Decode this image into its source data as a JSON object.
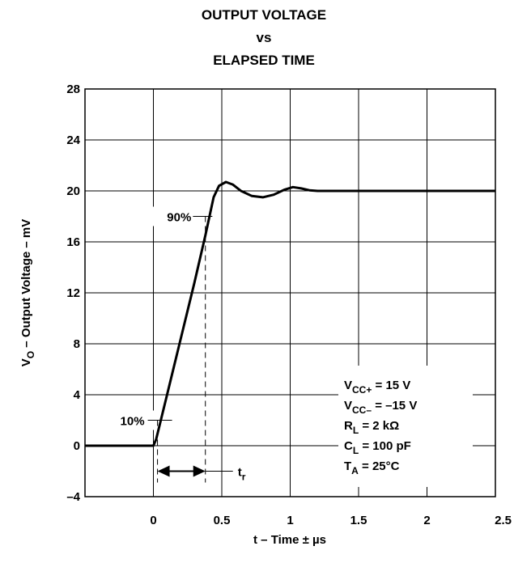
{
  "chart_data": {
    "type": "line",
    "title_lines": [
      "OUTPUT VOLTAGE",
      "vs",
      "ELAPSED TIME"
    ],
    "xlabel": "t – Time ± µs",
    "ylabel": "VO – Output Voltage – mV",
    "xlim": [
      -0.5,
      2.5
    ],
    "ylim": [
      -4,
      28
    ],
    "x_ticks": [
      "0",
      "0.5",
      "1",
      "1.5",
      "2",
      "2.5"
    ],
    "x_tick_values": [
      0,
      0.5,
      1,
      1.5,
      2,
      2.5
    ],
    "y_ticks": [
      "–4",
      "0",
      "4",
      "8",
      "12",
      "16",
      "20",
      "24",
      "28"
    ],
    "y_tick_values": [
      -4,
      0,
      4,
      8,
      12,
      16,
      20,
      24,
      28
    ],
    "grid": true,
    "series": [
      {
        "x": [
          -0.5,
          0.0,
          0.02,
          0.1,
          0.2,
          0.3,
          0.38,
          0.44,
          0.48,
          0.53,
          0.58,
          0.64,
          0.72,
          0.8,
          0.88,
          0.96,
          1.02,
          1.08,
          1.14,
          1.2,
          1.5,
          2.0,
          2.5
        ],
        "y": [
          0,
          0,
          0.5,
          4.0,
          8.4,
          12.8,
          16.5,
          19.5,
          20.4,
          20.7,
          20.5,
          20.0,
          19.6,
          19.5,
          19.7,
          20.1,
          20.3,
          20.2,
          20.05,
          20.0,
          20.0,
          20.0,
          20.0
        ]
      }
    ],
    "annotations": {
      "ten_percent": {
        "label": "10%",
        "x": 0.03,
        "y": 2
      },
      "ninety_percent": {
        "label": "90%",
        "x": 0.36,
        "y": 18
      },
      "rise_time": {
        "label": "t",
        "subscript": "r",
        "x_start": 0.03,
        "x_end": 0.38,
        "y": -2
      }
    },
    "conditions": [
      {
        "pre": "V",
        "sub": "CC+",
        "post": " = 15 V"
      },
      {
        "pre": "V",
        "sub": "CC–",
        "post": " = –15 V"
      },
      {
        "pre": "R",
        "sub": "L",
        "post": " = 2 kΩ"
      },
      {
        "pre": "C",
        "sub": "L",
        "post": " = 100 pF"
      },
      {
        "pre": "T",
        "sub": "A",
        "post": " = 25°C"
      }
    ]
  }
}
